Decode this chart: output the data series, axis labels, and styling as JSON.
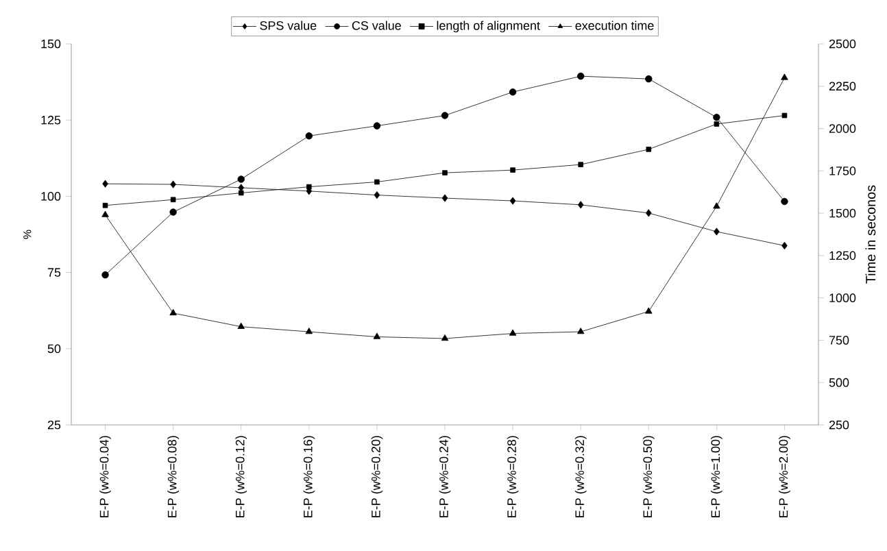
{
  "chart_data": {
    "type": "line",
    "ylabel": "%",
    "y2label": "Time in seconos",
    "categories": [
      "E-P (w%=0.04)",
      "E-P (w%=0.08)",
      "E-P (w%=0.12)",
      "E-P (w%=0.16)",
      "E-P (w%=0.20)",
      "E-P (w%=0.24)",
      "E-P (w%=0.28)",
      "E-P (w%=0.32)",
      "E-P (w%=0.50)",
      "E-P (w%=1.00)",
      "E-P (w%=2.00)"
    ],
    "series": [
      {
        "name": "SPS value",
        "color": "#000000",
        "marker": "diamond",
        "values": [
          104.1,
          103.9,
          102.8,
          101.7,
          100.4,
          99.4,
          98.5,
          97.2,
          94.5,
          88.4,
          83.8
        ]
      },
      {
        "name": "CS value",
        "color": "#000000",
        "marker": "circle",
        "values": [
          74.2,
          94.8,
          105.6,
          119.8,
          123.1,
          126.5,
          134.2,
          139.4,
          138.5,
          125.9,
          98.3
        ]
      },
      {
        "name": "length of alignment",
        "color": "#000000",
        "marker": "square",
        "values": [
          97.0,
          98.9,
          101.1,
          103.1,
          104.7,
          107.7,
          108.6,
          110.4,
          115.4,
          123.7,
          126.5
        ]
      },
      {
        "name": "execution time",
        "color": "#000000",
        "marker": "triangle",
        "axis": "y2",
        "values": [
          1490,
          910,
          830,
          800,
          770,
          760,
          790,
          800,
          920,
          1540,
          2300
        ]
      }
    ],
    "ylim": [
      25,
      150
    ],
    "yticks": [
      25,
      50,
      75,
      100,
      125,
      150
    ],
    "y2lim": [
      250,
      2500
    ],
    "y2ticks": [
      250,
      500,
      750,
      1000,
      1250,
      1500,
      1750,
      2000,
      2250,
      2500
    ],
    "legend": "top",
    "grid": false,
    "line_style": "solid"
  }
}
